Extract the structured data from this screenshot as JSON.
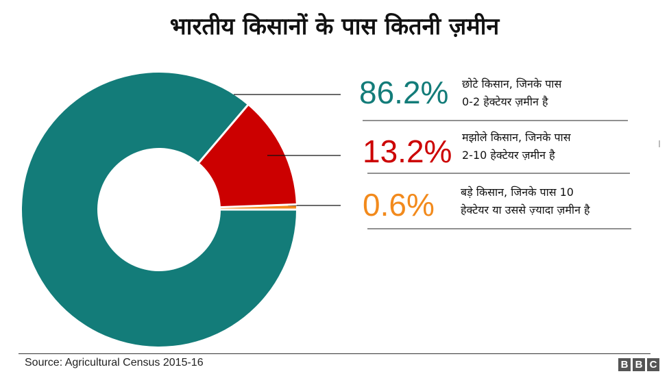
{
  "chart_data": {
    "type": "pie",
    "title": "भारतीय किसानों के पास कितनी ज़मीन",
    "donut": true,
    "slices": [
      {
        "label": "छोटे किसान, जिनके पास 0-2 हेक्टेयर ज़मीन है",
        "line1": "छोटे किसान, जिनके पास",
        "line2": "0-2 हेक्टेयर ज़मीन है",
        "value": 86.2,
        "display": "86.2%",
        "color": "#137c79"
      },
      {
        "label": "मझोले किसान, जिनके पास 2-10 हेक्टेयर ज़मीन है",
        "line1": "मझोले किसान, जिनके पास",
        "line2": "2-10 हेक्टेयर ज़मीन है",
        "value": 13.2,
        "display": "13.2%",
        "color": "#cc0000"
      },
      {
        "label": "बड़े किसान, जिनके पास 10 हेक्टेयर या उससे ज़्यादा ज़मीन है",
        "line1": "बड़े किसान, जिनके पास 10",
        "line2": "हेक्टेयर या उससे ज़्यादा ज़मीन है",
        "value": 0.6,
        "display": "0.6%",
        "color": "#f28a1c"
      }
    ]
  },
  "footer": {
    "source": "Source: Agricultural Census 2015-16",
    "logo": [
      "B",
      "B",
      "C"
    ]
  }
}
